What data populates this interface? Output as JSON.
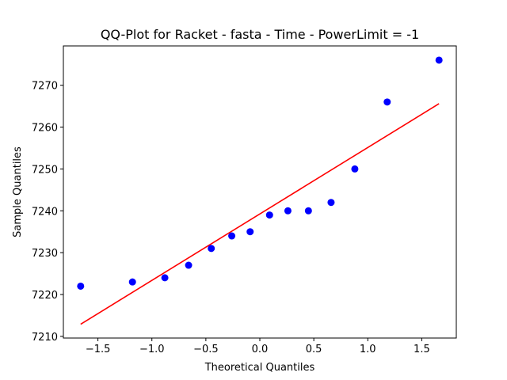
{
  "chart_data": {
    "type": "scatter",
    "title": "QQ-Plot for Racket - fasta - Time - PowerLimit = -1",
    "xlabel": "Theoretical Quantiles",
    "ylabel": "Sample Quantiles",
    "xlim": [
      -1.82,
      1.82
    ],
    "ylim": [
      7209.6,
      7279.4
    ],
    "grid": false,
    "x_ticks": [
      -1.5,
      -1.0,
      -0.5,
      0.0,
      0.5,
      1.0,
      1.5
    ],
    "x_tick_labels": [
      "−1.5",
      "−1.0",
      "−0.5",
      "0.0",
      "0.5",
      "1.0",
      "1.5"
    ],
    "y_ticks": [
      7210,
      7220,
      7230,
      7240,
      7250,
      7260,
      7270
    ],
    "y_tick_labels": [
      "7210",
      "7220",
      "7230",
      "7240",
      "7250",
      "7260",
      "7270"
    ],
    "points": {
      "color": "#0000ff",
      "x": [
        -1.66,
        -1.18,
        -0.88,
        -0.66,
        -0.45,
        -0.26,
        -0.09,
        0.09,
        0.26,
        0.45,
        0.66,
        0.88,
        1.18,
        1.66
      ],
      "y": [
        7222,
        7223,
        7224,
        7227,
        7231,
        7234,
        7235,
        7239,
        7240,
        7240,
        7242,
        7250,
        7266,
        7276
      ]
    },
    "fit_line": {
      "color": "#ff0000",
      "x": [
        -1.66,
        1.66
      ],
      "y": [
        7212.9,
        7265.6
      ]
    }
  }
}
